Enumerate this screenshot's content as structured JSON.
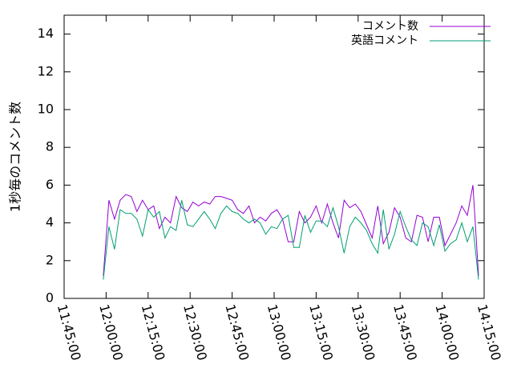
{
  "chart_data": {
    "type": "line",
    "ylabel": "1秒毎のコメント数",
    "x": [
      "11:59:00",
      "12:01:00",
      "12:03:00",
      "12:05:00",
      "12:07:00",
      "12:09:00",
      "12:11:00",
      "12:13:00",
      "12:15:00",
      "12:17:00",
      "12:19:00",
      "12:21:00",
      "12:23:00",
      "12:25:00",
      "12:27:00",
      "12:29:00",
      "12:31:00",
      "12:33:00",
      "12:35:00",
      "12:37:00",
      "12:39:00",
      "12:41:00",
      "12:43:00",
      "12:45:00",
      "12:47:00",
      "12:49:00",
      "12:51:00",
      "12:53:00",
      "12:55:00",
      "12:57:00",
      "12:59:00",
      "13:01:00",
      "13:03:00",
      "13:05:00",
      "13:07:00",
      "13:09:00",
      "13:11:00",
      "13:13:00",
      "13:15:00",
      "13:17:00",
      "13:19:00",
      "13:21:00",
      "13:23:00",
      "13:25:00",
      "13:27:00",
      "13:29:00",
      "13:31:00",
      "13:33:00",
      "13:35:00",
      "13:37:00",
      "13:39:00",
      "13:41:00",
      "13:43:00",
      "13:45:00",
      "13:47:00",
      "13:49:00",
      "13:51:00",
      "13:53:00",
      "13:55:00",
      "13:57:00",
      "13:59:00",
      "14:01:00",
      "14:03:00",
      "14:05:00",
      "14:07:00",
      "14:09:00",
      "14:11:00",
      "14:13:00"
    ],
    "series": [
      {
        "name": "コメント数",
        "color": "#9400d3",
        "values": [
          1.2,
          5.2,
          4.2,
          5.2,
          5.5,
          5.4,
          4.6,
          5.2,
          4.7,
          4.9,
          3.7,
          4.3,
          4.0,
          5.4,
          4.8,
          4.6,
          5.1,
          4.9,
          5.1,
          5.0,
          5.4,
          5.4,
          5.3,
          5.2,
          4.7,
          4.5,
          4.9,
          4.0,
          4.3,
          4.1,
          4.5,
          4.7,
          4.2,
          3.0,
          3.0,
          4.6,
          4.0,
          4.3,
          4.9,
          4.0,
          5.0,
          4.0,
          3.2,
          5.2,
          4.8,
          5.0,
          4.6,
          3.9,
          3.2,
          4.9,
          2.9,
          3.5,
          4.8,
          4.3,
          3.2,
          3.0,
          4.4,
          4.3,
          3.0,
          4.3,
          4.3,
          2.8,
          3.4,
          4.0,
          4.9,
          4.4,
          6.0,
          1.2
        ]
      },
      {
        "name": "英語コメント",
        "color": "#009e73",
        "values": [
          1.0,
          3.8,
          2.6,
          4.7,
          4.5,
          4.5,
          4.2,
          3.3,
          4.7,
          4.3,
          4.6,
          3.2,
          3.8,
          3.6,
          5.2,
          3.9,
          3.8,
          4.2,
          4.6,
          4.2,
          3.7,
          4.5,
          4.9,
          4.6,
          4.5,
          4.2,
          4.0,
          4.2,
          4.0,
          3.4,
          3.8,
          3.7,
          4.2,
          4.4,
          2.7,
          2.7,
          4.4,
          3.5,
          4.1,
          4.1,
          3.8,
          4.8,
          3.8,
          2.4,
          3.8,
          4.3,
          4.0,
          3.6,
          2.9,
          2.4,
          4.7,
          2.6,
          3.4,
          4.6,
          3.8,
          3.1,
          2.8,
          4.0,
          3.8,
          2.8,
          3.9,
          2.5,
          2.9,
          3.1,
          4.0,
          3.0,
          3.8,
          1.0
        ]
      }
    ],
    "xlim": [
      "11:45:00",
      "14:15:00"
    ],
    "xticks": [
      "11:45:00",
      "12:00:00",
      "12:15:00",
      "12:30:00",
      "12:45:00",
      "13:00:00",
      "13:15:00",
      "13:30:00",
      "13:45:00",
      "14:00:00",
      "14:15:00"
    ],
    "ylim": [
      0,
      15
    ],
    "yticks": [
      0,
      2,
      4,
      6,
      8,
      10,
      12,
      14
    ],
    "legend": "top-right"
  }
}
